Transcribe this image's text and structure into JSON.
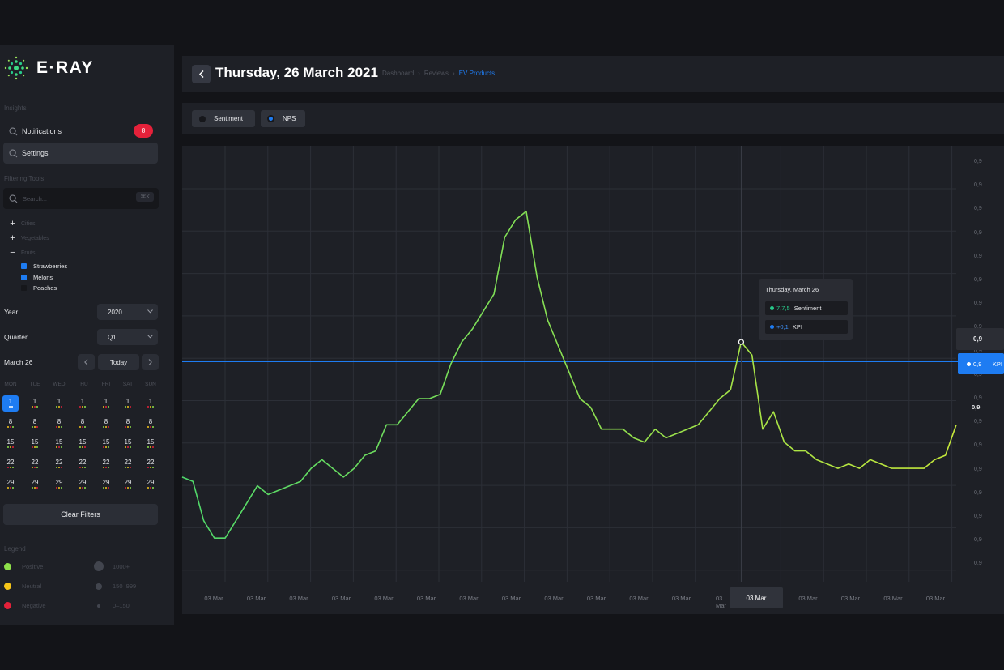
{
  "app": {
    "name": "E·RAY"
  },
  "sidebar": {
    "insights_label": "Insights",
    "nav": [
      {
        "label": "Notifications",
        "badge": "8"
      },
      {
        "label": "Settings"
      }
    ],
    "filtering_label": "Filtering Tools",
    "search": {
      "placeholder": "Search...",
      "shortcut": "⌘K"
    },
    "tree": [
      {
        "symbol": "+",
        "label": "Cities"
      },
      {
        "symbol": "+",
        "label": "Vegetables"
      },
      {
        "symbol": "−",
        "label": "Fruits"
      }
    ],
    "fruits": [
      {
        "label": "Strawberries",
        "color": "#1e7cf2"
      },
      {
        "label": "Melons",
        "color": "#1e7cf2"
      },
      {
        "label": "Peaches",
        "color": "#16171b"
      }
    ],
    "year": {
      "label": "Year",
      "value": "2020"
    },
    "quarter": {
      "label": "Quarter",
      "value": "Q1"
    },
    "date": {
      "label": "March 26",
      "today": "Today"
    },
    "calendar": {
      "days": [
        "MON",
        "TUE",
        "WED",
        "THU",
        "FRI",
        "SAT",
        "SUN"
      ],
      "weeks": [
        [
          "1",
          "1",
          "1",
          "1",
          "1",
          "1",
          "1"
        ],
        [
          "8",
          "8",
          "8",
          "8",
          "8",
          "8",
          "8"
        ],
        [
          "15",
          "15",
          "15",
          "15",
          "15",
          "15",
          "15"
        ],
        [
          "22",
          "22",
          "22",
          "22",
          "22",
          "22",
          "22"
        ],
        [
          "29",
          "29",
          "29",
          "29",
          "29",
          "29",
          "29"
        ]
      ],
      "selected": "1"
    },
    "clear_filters": "Clear Filters",
    "legend_label": "Legend",
    "legend": [
      {
        "label": "Positive",
        "color": "#8ee04a",
        "size_label": "1000+"
      },
      {
        "label": "Neutral",
        "color": "#f5c518",
        "size_label": "150–999"
      },
      {
        "label": "Negative",
        "color": "#e5213a",
        "size_label": "0–150"
      }
    ]
  },
  "header": {
    "title": "Thursday, 26 March 2021",
    "breadcrumbs": [
      "Dashboard",
      "Reviews",
      "EV Products"
    ]
  },
  "tabs": [
    {
      "label": "Sentiment",
      "color": "#16171b"
    },
    {
      "label": "NPS",
      "color": "#1e7cf2"
    }
  ],
  "tooltip": {
    "title": "Thursday, March 26",
    "rows": [
      {
        "value": "7,7,5",
        "label": "Sentiment",
        "color": "#27c98a"
      },
      {
        "value": "+0,1",
        "label": "KPI",
        "color": "#1e7cf2"
      }
    ]
  },
  "y_marker": {
    "value": "0,9",
    "kpi_value": "0,9",
    "kpi_label": "KPI",
    "bold_value": "0,9"
  },
  "chart_data": {
    "type": "line",
    "y_tick_labels": [
      "0,9",
      "0,9",
      "0,9",
      "0,9",
      "0,9",
      "0,9",
      "0,9",
      "0,9",
      "0,9",
      "0,9",
      "0,9",
      "0,9",
      "0,9",
      "0,9",
      "0,9",
      "0,9",
      "0,9",
      "0,9"
    ],
    "x_tick_labels": [
      "03 Mar",
      "03 Mar",
      "03 Mar",
      "03 Mar",
      "03 Mar",
      "03 Mar",
      "03 Mar",
      "03 Mar",
      "03 Mar",
      "03 Mar",
      "03 Mar",
      "03 Mar",
      "03 Mar",
      "03 Mar",
      "03 Mar",
      "03 Mar",
      "03 Mar",
      "03 Mar"
    ],
    "x_selected_label": "03 Mar",
    "ylim": [
      0,
      100
    ],
    "series": [
      {
        "color_start": "#4fd86a",
        "color_end": "#c6e83a",
        "values": [
          24,
          23,
          14,
          10,
          10,
          14,
          18,
          22,
          20,
          21,
          22,
          23,
          26,
          28,
          26,
          24,
          26,
          29,
          30,
          36,
          36,
          39,
          42,
          42,
          43,
          50,
          55,
          58,
          62,
          66,
          79,
          83,
          85,
          70,
          60,
          54,
          48,
          42,
          40,
          35,
          35,
          35,
          33,
          32,
          35,
          33,
          34,
          35,
          36,
          39,
          42,
          44,
          55,
          52,
          35,
          39,
          32,
          30,
          30,
          28,
          27,
          26,
          27,
          26,
          28,
          27,
          26,
          26,
          26,
          26,
          28,
          29,
          36
        ]
      }
    ],
    "reference_line": {
      "value": 50.5,
      "color": "#1e7cf2"
    },
    "grid": true
  }
}
